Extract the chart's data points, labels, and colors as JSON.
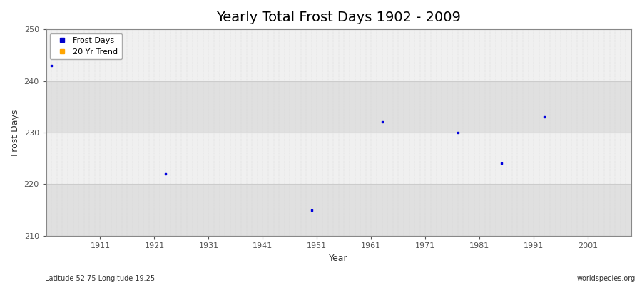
{
  "title": "Yearly Total Frost Days 1902 - 2009",
  "xlabel": "Year",
  "ylabel": "Frost Days",
  "figure_bg": "#ffffff",
  "plot_bg_light": "#f0f0f0",
  "plot_bg_dark": "#e0e0e0",
  "scatter_color": "#0000dd",
  "scatter_points": [
    [
      1902,
      243
    ],
    [
      1923,
      222
    ],
    [
      1950,
      215
    ],
    [
      1963,
      232
    ],
    [
      1977,
      230
    ],
    [
      1985,
      224
    ],
    [
      1993,
      233
    ]
  ],
  "ylim": [
    210,
    250
  ],
  "xlim": [
    1901,
    2009
  ],
  "xticks": [
    1911,
    1921,
    1931,
    1941,
    1951,
    1961,
    1971,
    1981,
    1991,
    2001
  ],
  "yticks": [
    210,
    220,
    230,
    240,
    250
  ],
  "band_edges": [
    210,
    220,
    230,
    240,
    250
  ],
  "legend_frost_label": "Frost Days",
  "legend_trend_label": "20 Yr Trend",
  "legend_frost_color": "#0000cc",
  "legend_trend_color": "#ffa500",
  "footnote_left": "Latitude 52.75 Longitude 19.25",
  "footnote_right": "worldspecies.org",
  "title_fontsize": 14,
  "axis_label_fontsize": 9,
  "tick_fontsize": 8,
  "footnote_fontsize": 7,
  "grid_color": "#cccccc",
  "marker_size": 2
}
